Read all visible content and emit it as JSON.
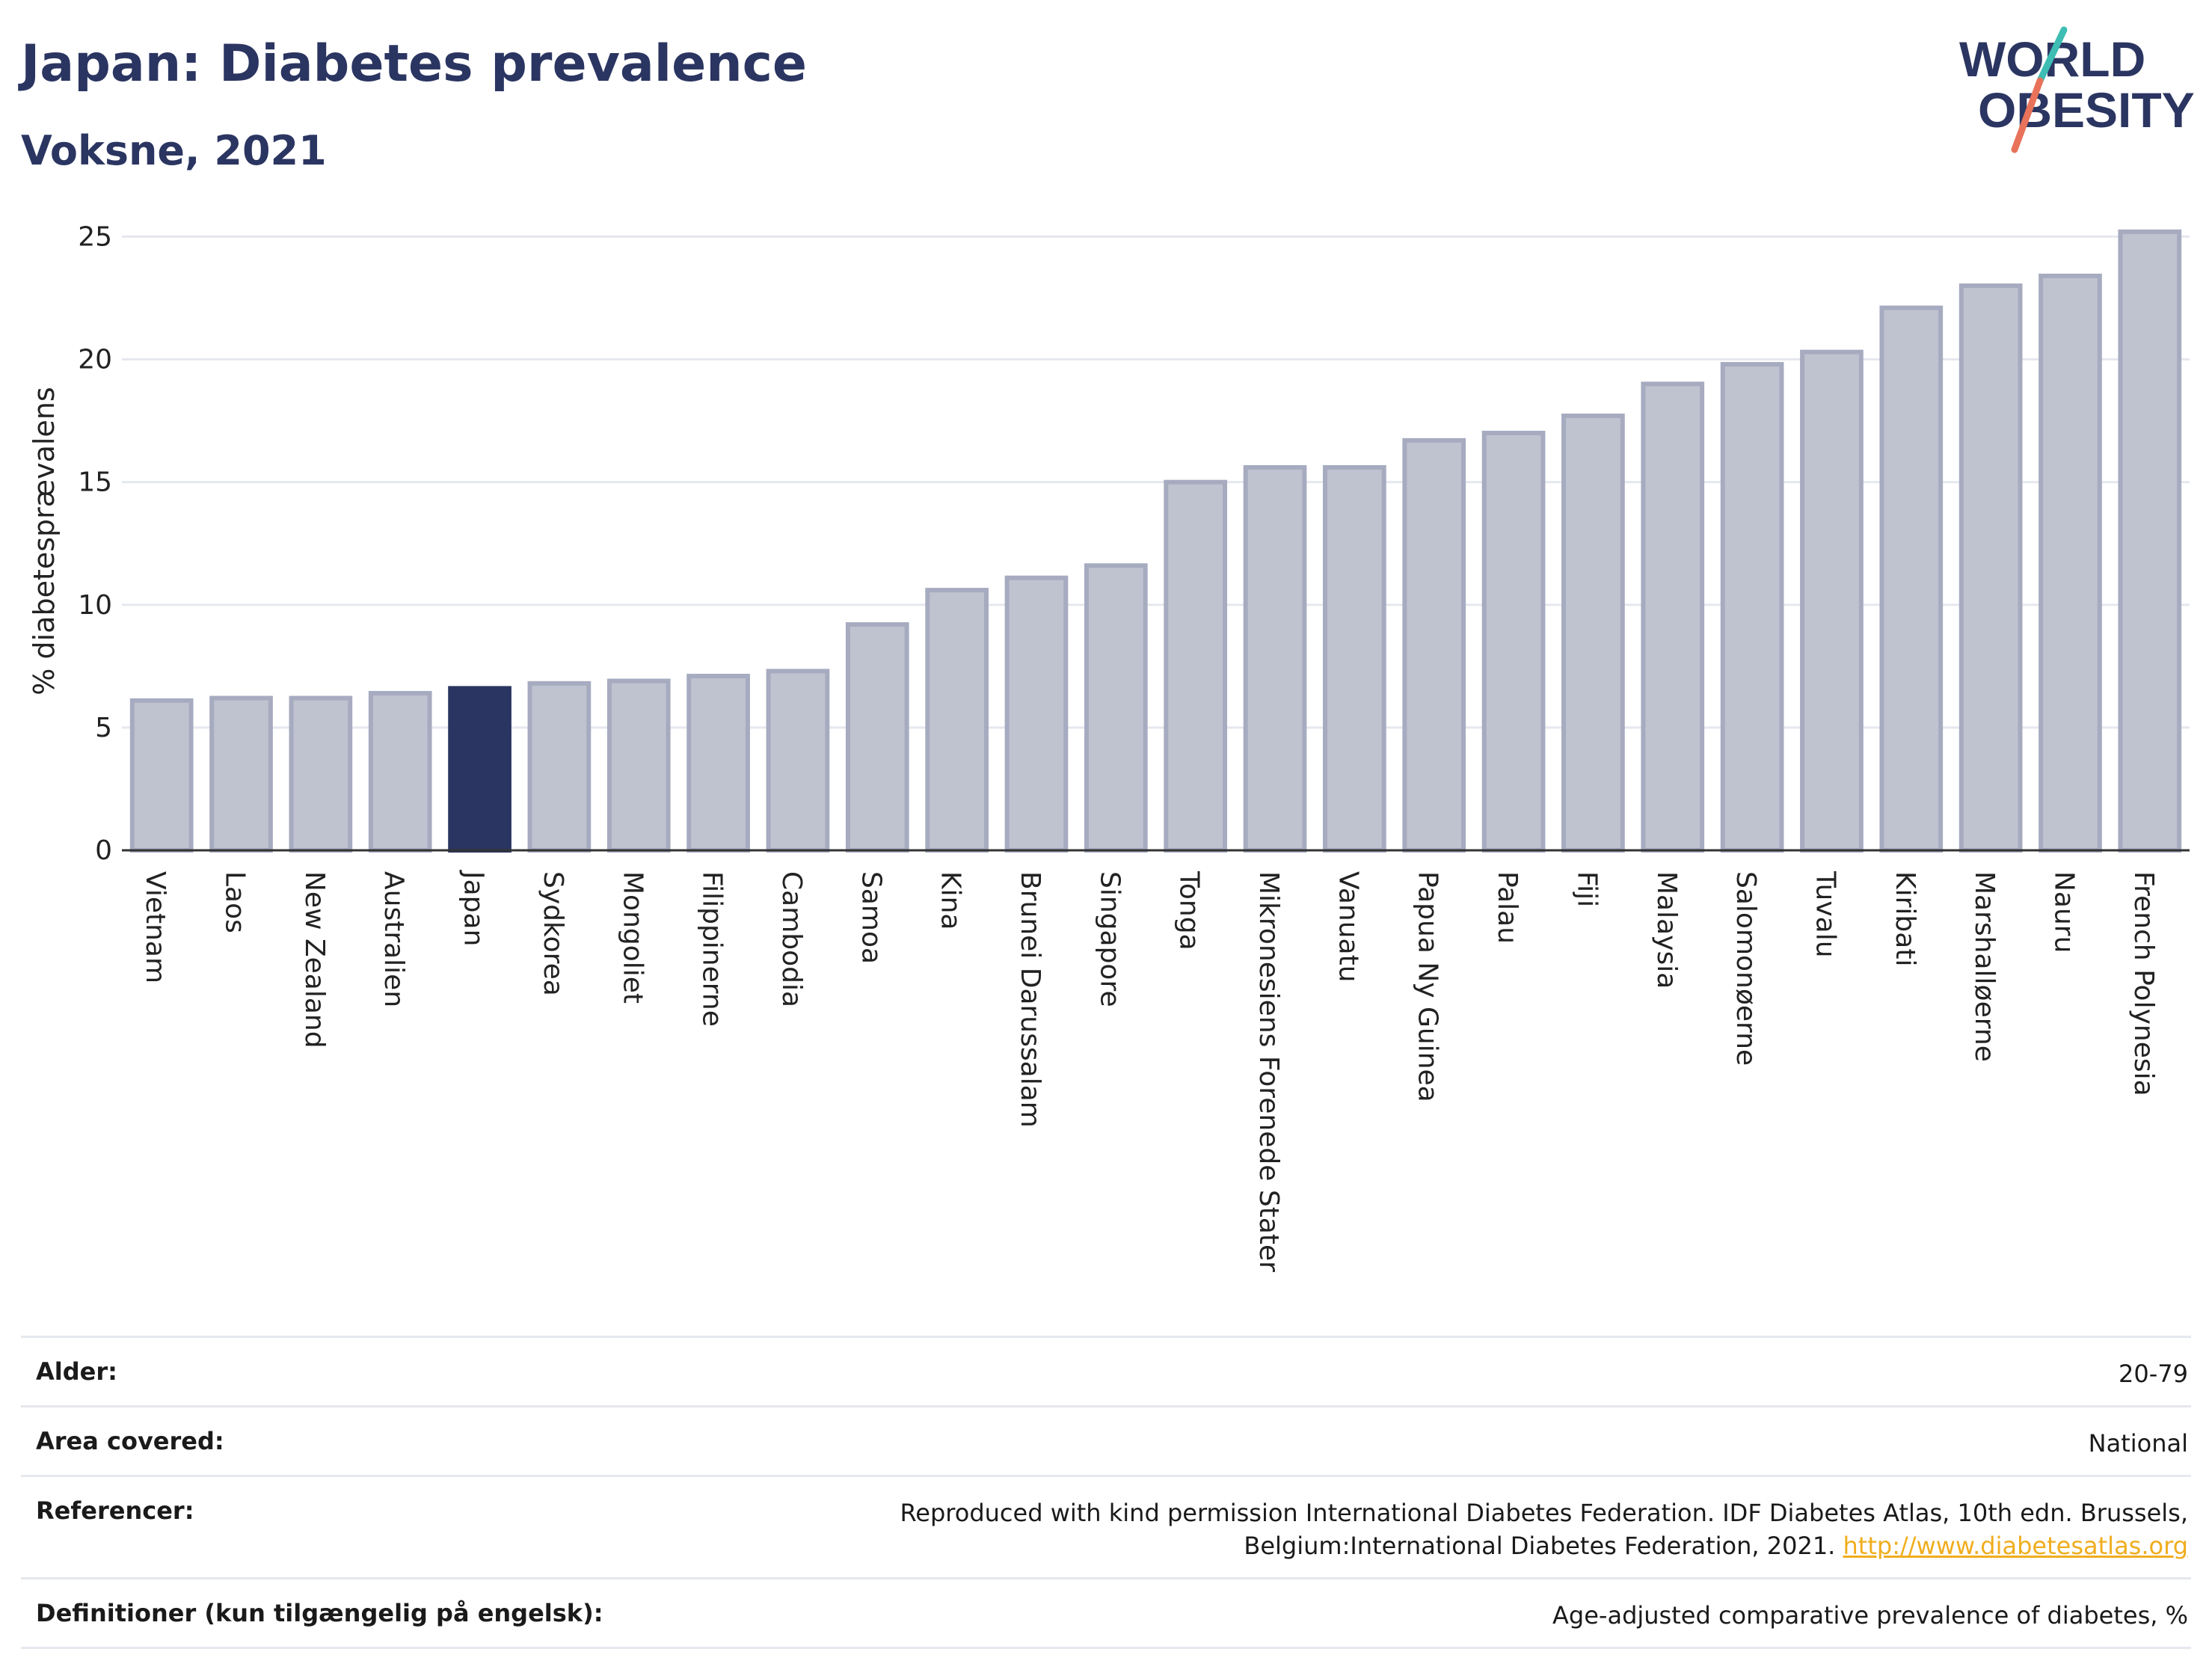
{
  "header": {
    "title": "Japan: Diabetes prevalence",
    "subtitle": "Voksne, 2021"
  },
  "logo": {
    "line1": "WORLD",
    "line2": "OBESITY",
    "accent_colors": [
      "#3dbdb3",
      "#e8735a"
    ],
    "text_color": "#2b3561"
  },
  "chart_data": {
    "type": "bar",
    "ylabel": "% diabetesprævalens",
    "ylim": [
      0,
      25.5
    ],
    "yticks": [
      0,
      5,
      10,
      15,
      20,
      25
    ],
    "grid": true,
    "categories": [
      "Vietnam",
      "Laos",
      "New Zealand",
      "Australien",
      "Japan",
      "Sydkorea",
      "Mongoliet",
      "Filippinerne",
      "Cambodia",
      "Samoa",
      "Kina",
      "Brunei Darussalam",
      "Singapore",
      "Tonga",
      "Mikronesiens Forenede Stater",
      "Vanuatu",
      "Papua Ny Guinea",
      "Palau",
      "Fiji",
      "Malaysia",
      "Salomonøerne",
      "Tuvalu",
      "Kiribati",
      "Marshalløerne",
      "Nauru",
      "French Polynesia"
    ],
    "values": [
      6.1,
      6.2,
      6.2,
      6.4,
      6.6,
      6.8,
      6.9,
      7.1,
      7.3,
      9.2,
      10.6,
      11.1,
      11.6,
      15.0,
      15.6,
      15.6,
      16.7,
      17.0,
      17.7,
      19.0,
      19.8,
      20.3,
      22.1,
      23.0,
      23.4,
      25.2
    ],
    "highlight": "Japan",
    "colors": {
      "bar": "#bfc3d0",
      "bar_border": "#a6abc0",
      "highlight": "#2b3561"
    }
  },
  "footer": {
    "rows": [
      {
        "label": "Alder:",
        "value": "20-79"
      },
      {
        "label": "Area covered:",
        "value": "National"
      },
      {
        "label": "Referencer:",
        "value": "Reproduced with kind permission International Diabetes Federation.  IDF Diabetes Atlas, 10th edn. Brussels, Belgium:International Diabetes Federation, 2021.",
        "link": "http://www.diabetesatlas.org"
      },
      {
        "label": "Definitioner (kun tilgængelig på engelsk):",
        "value": "Age-adjusted comparative prevalence of diabetes, %"
      }
    ]
  }
}
